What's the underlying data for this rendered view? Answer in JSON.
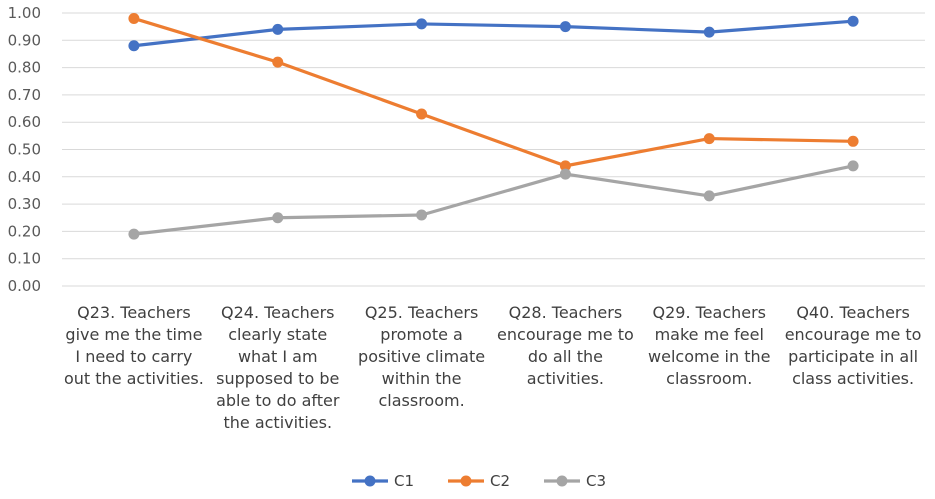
{
  "chart_data": {
    "type": "line",
    "categories": [
      [
        "Q23. Teachers",
        "give me the time",
        "I need to carry",
        "out the activities."
      ],
      [
        "Q24. Teachers",
        "clearly state",
        "what I am",
        "supposed to be",
        "able to do after",
        "the activities."
      ],
      [
        "Q25. Teachers",
        "promote a",
        "positive climate",
        "within the",
        "classroom."
      ],
      [
        "Q28. Teachers",
        "encourage me to",
        "do all the",
        "activities."
      ],
      [
        "Q29. Teachers",
        "make me feel",
        "welcome in the",
        "classroom."
      ],
      [
        "Q40. Teachers",
        "encourage me to",
        "participate in all",
        "class activities."
      ]
    ],
    "series": [
      {
        "name": "C1",
        "color": "#4472C4",
        "values": [
          0.88,
          0.94,
          0.96,
          0.95,
          0.93,
          0.97
        ]
      },
      {
        "name": "C2",
        "color": "#ED7D31",
        "values": [
          0.98,
          0.82,
          0.63,
          0.44,
          0.54,
          0.53
        ]
      },
      {
        "name": "C3",
        "color": "#A5A5A5",
        "values": [
          0.19,
          0.25,
          0.26,
          0.41,
          0.33,
          0.44
        ]
      }
    ],
    "yticks": [
      "0.00",
      "0.10",
      "0.20",
      "0.30",
      "0.40",
      "0.50",
      "0.60",
      "0.70",
      "0.80",
      "0.90",
      "1.00"
    ],
    "ylim": [
      0,
      1
    ],
    "grid": true,
    "legend": "bottom"
  }
}
